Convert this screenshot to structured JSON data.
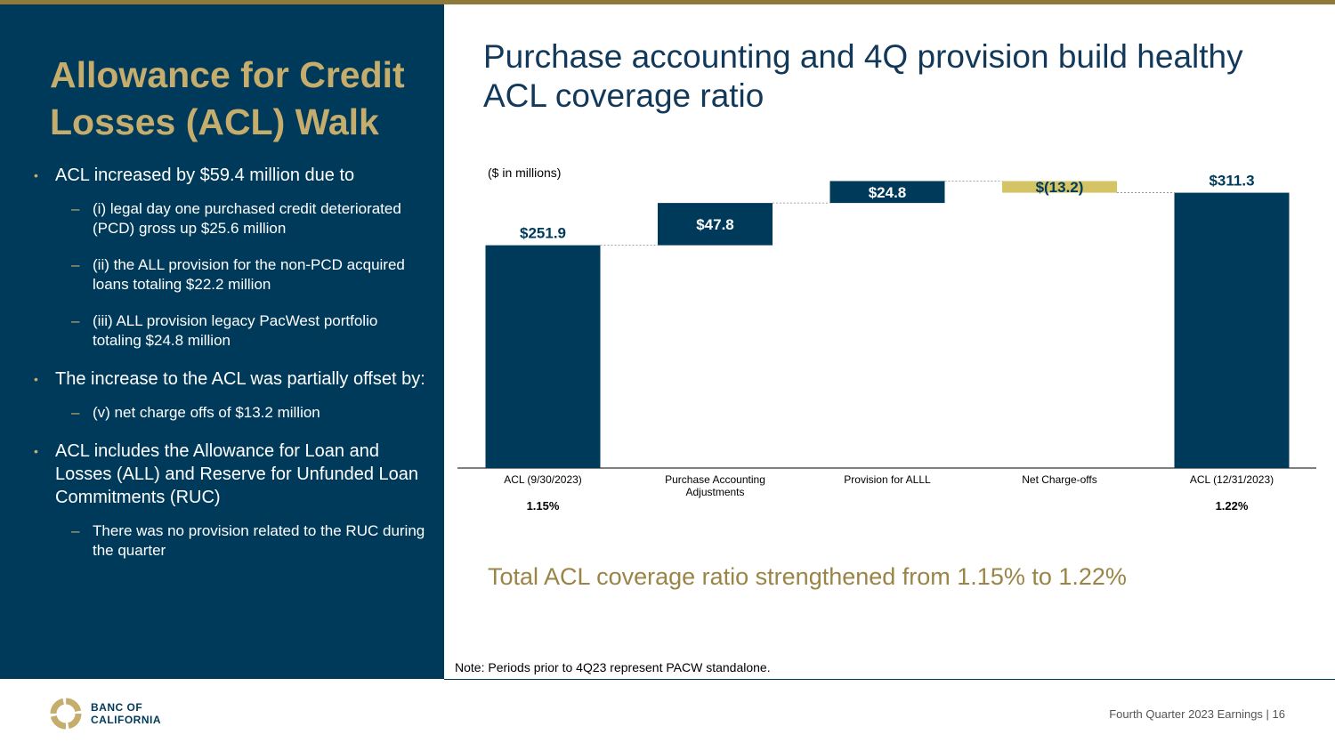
{
  "left_panel": {
    "title": "Allowance for Credit Losses (ACL) Walk",
    "b1": "ACL increased by $59.4 million due to",
    "b1_subs": [
      "(i) legal day one purchased credit deteriorated (PCD) gross up $25.6 million",
      "(ii) the ALL provision for the non-PCD acquired loans totaling $22.2 million",
      "(iii) ALL provision legacy PacWest portfolio totaling $24.8 million"
    ],
    "b2": "The increase to the ACL was partially offset by:",
    "b2_subs": [
      "(v) net charge offs of $13.2 million"
    ],
    "b3": "ACL includes the Allowance for Loan and Losses (ALL) and Reserve for Unfunded Loan Commitments (RUC)",
    "b3_subs": [
      "There was no provision related to the RUC during the quarter"
    ],
    "bullet_glyph": "•",
    "dash_glyph": "–"
  },
  "headline": "Purchase accounting and 4Q provision build healthy ACL coverage ratio",
  "chart_data": {
    "type": "bar",
    "subtype": "waterfall",
    "unit_label": "($ in millions)",
    "categories": [
      "ACL (9/30/2023)",
      "Purchase Accounting Adjustments",
      "Provision for ALLL",
      "Net Charge-offs",
      "ACL (12/31/2023)"
    ],
    "values": [
      251.9,
      47.8,
      24.8,
      -13.2,
      311.3
    ],
    "kinds": [
      "total",
      "delta",
      "delta",
      "delta",
      "total"
    ],
    "data_labels": [
      "$251.9",
      "$47.8",
      "$24.8",
      "$(13.2)",
      "$311.3"
    ],
    "coverage_ratios": [
      "1.15%",
      "",
      "",
      "",
      "1.22%"
    ],
    "ylim": [
      0,
      330
    ],
    "colors": {
      "positive": "#003a5a",
      "negative": "#d4c466",
      "label_dark": "#003a5a",
      "label_light": "#ffffff"
    }
  },
  "callout": "Total ACL coverage ratio strengthened from 1.15% to 1.22%",
  "note": "Note: Periods prior to 4Q23 represent PACW standalone.",
  "footer": {
    "logo_line1": "BANC OF",
    "logo_line2": "CALIFORNIA",
    "text": "Fourth Quarter 2023 Earnings |  16"
  },
  "colors": {
    "navy": "#003a5a",
    "gold": "#c5ad6e",
    "rule": "#8f7a3a"
  }
}
